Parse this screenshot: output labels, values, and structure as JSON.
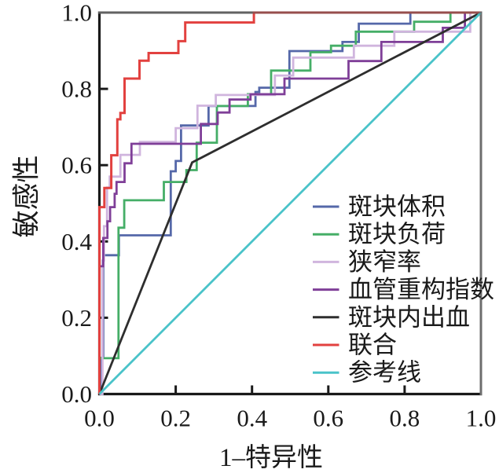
{
  "chart_data": {
    "type": "line",
    "subtype": "roc-curves",
    "title": "",
    "xlabel": "1–特异性",
    "ylabel": "敏感性",
    "xlim": [
      0,
      1
    ],
    "ylim": [
      0,
      1
    ],
    "x_ticks": [
      "0.0",
      "0.2",
      "0.4",
      "0.6",
      "0.8",
      "1.0"
    ],
    "y_ticks": [
      "0.0",
      "0.2",
      "0.4",
      "0.6",
      "0.8",
      "1.0"
    ],
    "grid": false,
    "legend_position": "inside-bottom-right",
    "colors": {
      "axis": "#1a1a1a",
      "border_top_right": "#6e6e6e",
      "text": "#1a1a1a",
      "background": "#ffffff"
    },
    "series": [
      {
        "id": "plaque-volume",
        "name": "斑块体积",
        "color": "#5568a9",
        "points": [
          [
            0,
            0
          ],
          [
            0.005,
            0
          ],
          [
            0.005,
            0.095
          ],
          [
            0.01,
            0.095
          ],
          [
            0.01,
            0.364
          ],
          [
            0.051,
            0.364
          ],
          [
            0.051,
            0.416
          ],
          [
            0.187,
            0.416
          ],
          [
            0.187,
            0.584
          ],
          [
            0.2,
            0.584
          ],
          [
            0.2,
            0.611
          ],
          [
            0.214,
            0.611
          ],
          [
            0.214,
            0.704
          ],
          [
            0.286,
            0.704
          ],
          [
            0.286,
            0.755
          ],
          [
            0.409,
            0.755
          ],
          [
            0.409,
            0.792
          ],
          [
            0.419,
            0.792
          ],
          [
            0.419,
            0.803
          ],
          [
            0.498,
            0.803
          ],
          [
            0.498,
            0.899
          ],
          [
            0.637,
            0.899
          ],
          [
            0.637,
            0.923
          ],
          [
            0.68,
            0.923
          ],
          [
            0.68,
            0.971
          ],
          [
            0.815,
            0.971
          ],
          [
            0.815,
            1
          ],
          [
            1,
            1
          ]
        ]
      },
      {
        "id": "plaque-burden",
        "name": "斑块负荷",
        "color": "#45ae67",
        "points": [
          [
            0,
            0
          ],
          [
            0,
            0.094
          ],
          [
            0.05,
            0.094
          ],
          [
            0.05,
            0.436
          ],
          [
            0.065,
            0.436
          ],
          [
            0.065,
            0.508
          ],
          [
            0.169,
            0.508
          ],
          [
            0.169,
            0.556
          ],
          [
            0.228,
            0.556
          ],
          [
            0.228,
            0.587
          ],
          [
            0.255,
            0.587
          ],
          [
            0.255,
            0.659
          ],
          [
            0.308,
            0.659
          ],
          [
            0.308,
            0.755
          ],
          [
            0.389,
            0.755
          ],
          [
            0.389,
            0.786
          ],
          [
            0.45,
            0.786
          ],
          [
            0.45,
            0.848
          ],
          [
            0.553,
            0.848
          ],
          [
            0.553,
            0.896
          ],
          [
            0.607,
            0.896
          ],
          [
            0.607,
            0.913
          ],
          [
            0.672,
            0.913
          ],
          [
            0.672,
            0.95
          ],
          [
            0.825,
            0.95
          ],
          [
            0.825,
            0.976
          ],
          [
            0.92,
            0.976
          ],
          [
            0.92,
            1
          ],
          [
            1,
            1
          ]
        ]
      },
      {
        "id": "stenosis-rate",
        "name": "狭窄率",
        "color": "#d0b5de",
        "points": [
          [
            0,
            0
          ],
          [
            0.008,
            0
          ],
          [
            0.008,
            0.35
          ],
          [
            0.012,
            0.35
          ],
          [
            0.012,
            0.44
          ],
          [
            0.02,
            0.44
          ],
          [
            0.02,
            0.541
          ],
          [
            0.027,
            0.541
          ],
          [
            0.027,
            0.57
          ],
          [
            0.055,
            0.57
          ],
          [
            0.055,
            0.627
          ],
          [
            0.106,
            0.627
          ],
          [
            0.106,
            0.661
          ],
          [
            0.2,
            0.661
          ],
          [
            0.2,
            0.697
          ],
          [
            0.257,
            0.697
          ],
          [
            0.257,
            0.756
          ],
          [
            0.305,
            0.756
          ],
          [
            0.305,
            0.784
          ],
          [
            0.46,
            0.784
          ],
          [
            0.46,
            0.835
          ],
          [
            0.508,
            0.835
          ],
          [
            0.508,
            0.882
          ],
          [
            0.667,
            0.882
          ],
          [
            0.667,
            0.913
          ],
          [
            0.773,
            0.913
          ],
          [
            0.773,
            0.95
          ],
          [
            0.972,
            0.95
          ],
          [
            0.972,
            1
          ],
          [
            1,
            1
          ]
        ]
      },
      {
        "id": "remodeling-index",
        "name": "血管重构指数",
        "color": "#7f3f98",
        "points": [
          [
            0,
            0
          ],
          [
            0,
            0.335
          ],
          [
            0.01,
            0.335
          ],
          [
            0.01,
            0.409
          ],
          [
            0.021,
            0.409
          ],
          [
            0.021,
            0.453
          ],
          [
            0.028,
            0.453
          ],
          [
            0.028,
            0.49
          ],
          [
            0.04,
            0.49
          ],
          [
            0.04,
            0.525
          ],
          [
            0.045,
            0.525
          ],
          [
            0.045,
            0.556
          ],
          [
            0.066,
            0.556
          ],
          [
            0.066,
            0.605
          ],
          [
            0.084,
            0.605
          ],
          [
            0.084,
            0.656
          ],
          [
            0.266,
            0.656
          ],
          [
            0.266,
            0.708
          ],
          [
            0.31,
            0.708
          ],
          [
            0.31,
            0.738
          ],
          [
            0.341,
            0.738
          ],
          [
            0.341,
            0.772
          ],
          [
            0.396,
            0.772
          ],
          [
            0.396,
            0.786
          ],
          [
            0.485,
            0.786
          ],
          [
            0.485,
            0.827
          ],
          [
            0.653,
            0.827
          ],
          [
            0.653,
            0.873
          ],
          [
            0.739,
            0.873
          ],
          [
            0.739,
            0.923
          ],
          [
            0.9,
            0.923
          ],
          [
            0.9,
            0.96
          ],
          [
            0.958,
            0.96
          ],
          [
            0.958,
            1
          ],
          [
            1,
            1
          ]
        ]
      },
      {
        "id": "intraplaque-hemorrhage",
        "name": "斑块内出血",
        "color": "#2e2e2e",
        "points": [
          [
            0,
            0
          ],
          [
            0.243,
            0.607
          ],
          [
            1,
            1
          ]
        ]
      },
      {
        "id": "combined",
        "name": "联合",
        "color": "#e2413f",
        "points": [
          [
            0,
            0
          ],
          [
            0,
            0.49
          ],
          [
            0.013,
            0.49
          ],
          [
            0.013,
            0.54
          ],
          [
            0.031,
            0.54
          ],
          [
            0.031,
            0.626
          ],
          [
            0.047,
            0.626
          ],
          [
            0.047,
            0.72
          ],
          [
            0.055,
            0.72
          ],
          [
            0.055,
            0.737
          ],
          [
            0.066,
            0.737
          ],
          [
            0.066,
            0.827
          ],
          [
            0.105,
            0.827
          ],
          [
            0.105,
            0.874
          ],
          [
            0.129,
            0.874
          ],
          [
            0.129,
            0.894
          ],
          [
            0.207,
            0.894
          ],
          [
            0.207,
            0.925
          ],
          [
            0.225,
            0.925
          ],
          [
            0.225,
            0.974
          ],
          [
            0.405,
            0.974
          ],
          [
            0.405,
            1
          ],
          [
            1,
            1
          ]
        ]
      },
      {
        "id": "reference-line",
        "name": "参考线",
        "color": "#4ac3c9",
        "points": [
          [
            0,
            0
          ],
          [
            1,
            1
          ]
        ]
      }
    ]
  }
}
